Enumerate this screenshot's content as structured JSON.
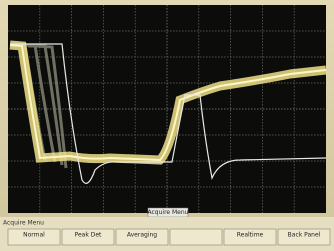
{
  "screen": {
    "center_label": "Acquire Menu"
  },
  "menu": {
    "title": "Acquire Menu",
    "buttons": [
      "Normal",
      "Peak Det",
      "Averaging",
      "Realtime",
      "Back Panel"
    ]
  }
}
